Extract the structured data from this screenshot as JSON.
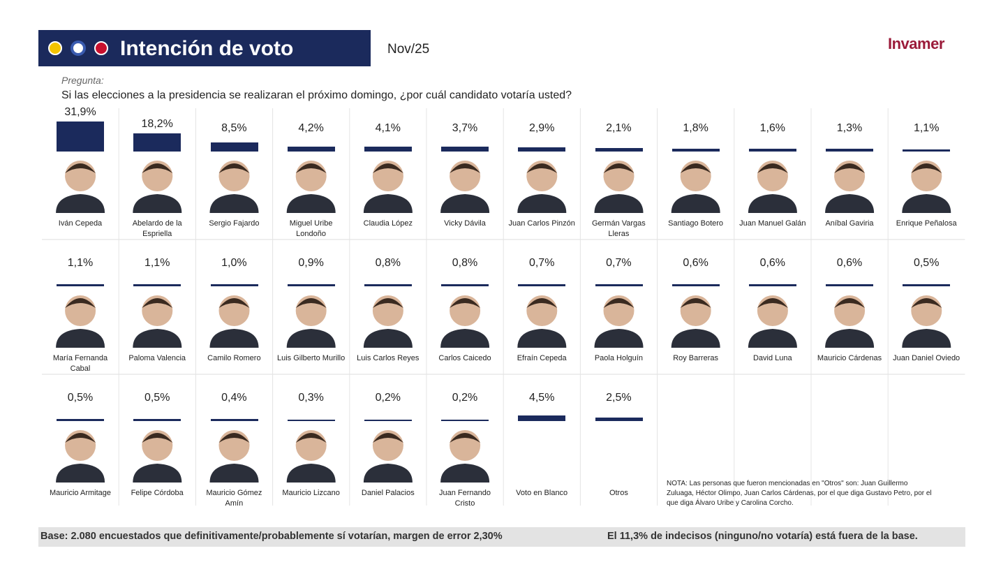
{
  "chart_data": {
    "type": "bar",
    "title": "Intención de voto",
    "date": "Nov/25",
    "logo": "Invamer",
    "question_label": "Pregunta:",
    "question": "Si las elecciones a la presidencia se realizaran el próximo domingo, ¿por cuál candidato votaría usted?",
    "categories": [
      "Iván Cepeda",
      "Abelardo de la Espriella",
      "Sergio Fajardo",
      "Miguel Uribe Londoño",
      "Claudia López",
      "Vicky Dávila",
      "Juan Carlos Pinzón",
      "Germán Vargas Lleras",
      "Santiago Botero",
      "Juan Manuel Galán",
      "Aníbal Gaviria",
      "Enrique Peñalosa",
      "María Fernanda Cabal",
      "Paloma Valencia",
      "Camilo Romero",
      "Luis Gilberto Murillo",
      "Luis Carlos Reyes",
      "Carlos Caicedo",
      "Efraín Cepeda",
      "Paola Holguín",
      "Roy Barreras",
      "David Luna",
      "Mauricio Cárdenas",
      "Juan Daniel Oviedo",
      "Mauricio Armitage",
      "Felipe Córdoba",
      "Mauricio Gómez Amín",
      "Mauricio Lizcano",
      "Daniel Palacios",
      "Juan Fernando Cristo",
      "Voto en Blanco",
      "Otros"
    ],
    "values": [
      31.9,
      18.2,
      8.5,
      4.2,
      4.1,
      3.7,
      2.9,
      2.1,
      1.8,
      1.6,
      1.3,
      1.1,
      1.1,
      1.1,
      1.0,
      0.9,
      0.8,
      0.8,
      0.7,
      0.7,
      0.6,
      0.6,
      0.6,
      0.5,
      0.5,
      0.5,
      0.4,
      0.3,
      0.2,
      0.2,
      4.5,
      2.5
    ],
    "value_labels": [
      "31,9%",
      "18,2%",
      "8,5%",
      "4,2%",
      "4,1%",
      "3,7%",
      "2,9%",
      "2,1%",
      "1,8%",
      "1,6%",
      "1,3%",
      "1,1%",
      "1,1%",
      "1,1%",
      "1,0%",
      "0,9%",
      "0,8%",
      "0,8%",
      "0,7%",
      "0,7%",
      "0,6%",
      "0,6%",
      "0,6%",
      "0,5%",
      "0,5%",
      "0,5%",
      "0,4%",
      "0,3%",
      "0,2%",
      "0,2%",
      "4,5%",
      "2,5%"
    ],
    "color": "#1b2a5c",
    "note": "NOTA: Las personas que fueron mencionadas en \"Otros\" son: Juan Guillermo Zuluaga, Héctor Olimpo, Juan Carlos Cárdenas, por el que diga Gustavo Petro, por el que diga Álvaro Uribe y Carolina Corcho.",
    "base": "Base: 2.080 encuestados que definitivamente/probablemente sí votarían, margen de error 2,30%",
    "undecided": "El 11,3% de indecisos (ninguno/no votaría) está fuera de la base."
  }
}
